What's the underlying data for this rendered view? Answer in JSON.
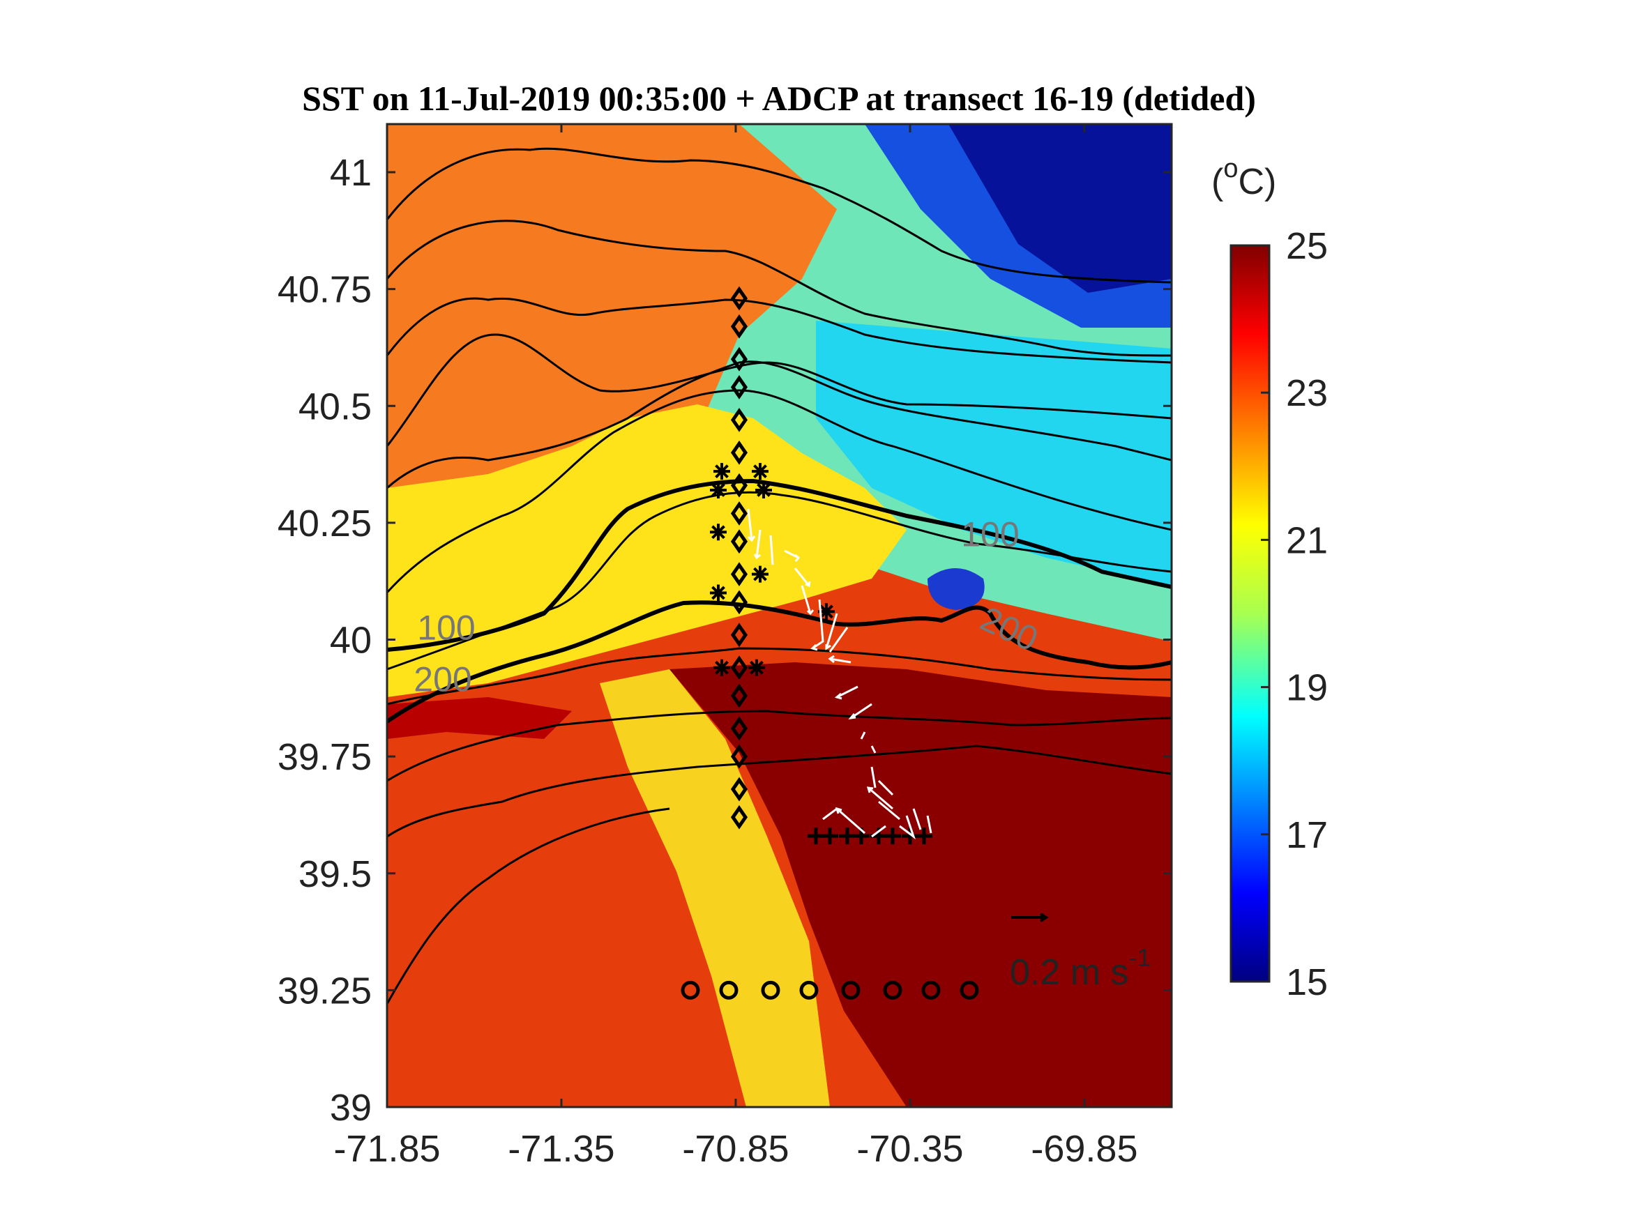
{
  "chart_data": {
    "type": "heatmap",
    "title": "SST on 11-Jul-2019 00:35:00 + ADCP at transect 16-19 (detided)",
    "xlabel": "",
    "ylabel": "",
    "xlim": [
      -71.85,
      -69.7
    ],
    "ylim": [
      39.0,
      41.1
    ],
    "x_ticks": [
      "-71.85",
      "-71.35",
      "-70.85",
      "-70.35",
      "-69.85"
    ],
    "y_ticks": [
      "39",
      "39.25",
      "39.5",
      "39.75",
      "40",
      "40.25",
      "40.5",
      "40.75",
      "41"
    ],
    "colorbar": {
      "label_prefix": "(",
      "label_sup": "o",
      "label_suffix": "C)",
      "range": [
        15,
        25
      ],
      "ticks": [
        "15",
        "17",
        "19",
        "21",
        "23",
        "25"
      ],
      "colormap": "jet"
    },
    "contour_labels": [
      {
        "text": "100",
        "lon": -71.68,
        "lat": 40.0
      },
      {
        "text": "200",
        "lon": -71.69,
        "lat": 39.89
      },
      {
        "text": "100",
        "lon": -70.12,
        "lat": 40.2
      },
      {
        "text": "200",
        "lon": -70.08,
        "lat": 40.0
      }
    ],
    "scale_arrow": {
      "label": "0.2 m s",
      "sup": "-1",
      "value_ms": 0.2
    },
    "stations": {
      "diamond_line": {
        "lon": -70.84,
        "lat": [
          40.73,
          40.67,
          40.6,
          40.54,
          40.47,
          40.4,
          40.33,
          40.27,
          40.21,
          40.14,
          40.08,
          40.01,
          39.94,
          39.88,
          39.81,
          39.75,
          39.68,
          39.62
        ]
      },
      "circle_line": {
        "lat": 39.25,
        "lon": [
          -70.98,
          -70.87,
          -70.75,
          -70.64,
          -70.52,
          -70.4,
          -70.29,
          -70.18
        ]
      },
      "plus_line": {
        "lat": 39.58,
        "lon": [
          -70.62,
          -70.58,
          -70.53,
          -70.49,
          -70.44,
          -70.4,
          -70.35,
          -70.31
        ]
      },
      "stars": [
        {
          "lon": -70.89,
          "lat": 40.36
        },
        {
          "lon": -70.78,
          "lat": 40.36
        },
        {
          "lon": -70.9,
          "lat": 40.32
        },
        {
          "lon": -70.77,
          "lat": 40.32
        },
        {
          "lon": -70.9,
          "lat": 40.23
        },
        {
          "lon": -70.78,
          "lat": 40.14
        },
        {
          "lon": -70.9,
          "lat": 40.1
        },
        {
          "lon": -70.89,
          "lat": 39.94
        },
        {
          "lon": -70.79,
          "lat": 39.94
        },
        {
          "lon": -70.59,
          "lat": 40.06
        }
      ]
    }
  }
}
